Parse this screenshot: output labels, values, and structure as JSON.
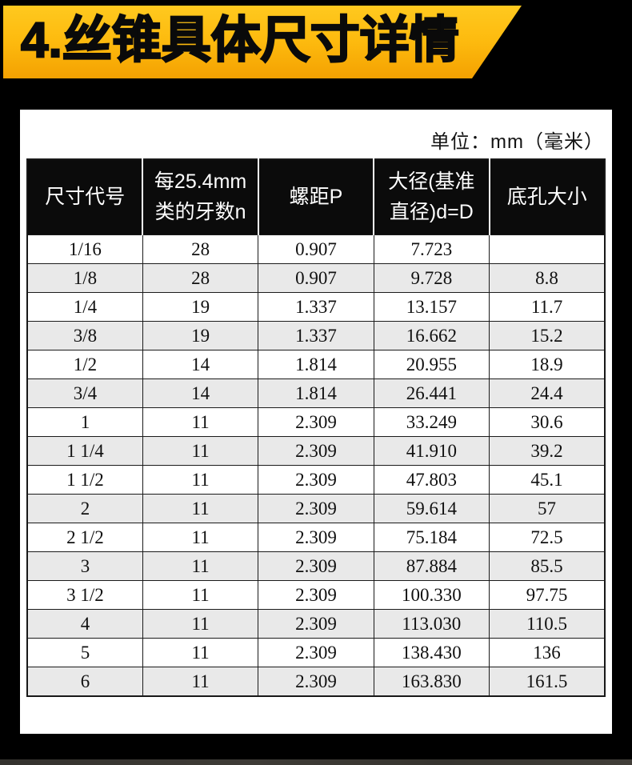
{
  "page": {
    "title": "4.丝锥具体尺寸详情",
    "unit_note": "单位：mm（毫米）"
  },
  "colors": {
    "background": "#000000",
    "banner_gradient_top": "#ffc91f",
    "banner_gradient_bottom": "#f4a101",
    "panel": "#ffffff",
    "header_bg": "#0b0b0b",
    "header_text": "#ffffff",
    "row_alt": "#e9e9e9",
    "body_text": "#101010"
  },
  "table": {
    "headers": [
      "尺寸代号",
      "每25.4mm\n类的牙数n",
      "螺距P",
      "大径(基准\n直径)d=D",
      "底孔大小"
    ],
    "rows": [
      [
        "1/16",
        "28",
        "0.907",
        "7.723",
        ""
      ],
      [
        "1/8",
        "28",
        "0.907",
        "9.728",
        "8.8"
      ],
      [
        "1/4",
        "19",
        "1.337",
        "13.157",
        "11.7"
      ],
      [
        "3/8",
        "19",
        "1.337",
        "16.662",
        "15.2"
      ],
      [
        "1/2",
        "14",
        "1.814",
        "20.955",
        "18.9"
      ],
      [
        "3/4",
        "14",
        "1.814",
        "26.441",
        "24.4"
      ],
      [
        "1",
        "11",
        "2.309",
        "33.249",
        "30.6"
      ],
      [
        "1 1/4",
        "11",
        "2.309",
        "41.910",
        "39.2"
      ],
      [
        "1 1/2",
        "11",
        "2.309",
        "47.803",
        "45.1"
      ],
      [
        "2",
        "11",
        "2.309",
        "59.614",
        "57"
      ],
      [
        "2 1/2",
        "11",
        "2.309",
        "75.184",
        "72.5"
      ],
      [
        "3",
        "11",
        "2.309",
        "87.884",
        "85.5"
      ],
      [
        "3 1/2",
        "11",
        "2.309",
        "100.330",
        "97.75"
      ],
      [
        "4",
        "11",
        "2.309",
        "113.030",
        "110.5"
      ],
      [
        "5",
        "11",
        "2.309",
        "138.430",
        "136"
      ],
      [
        "6",
        "11",
        "2.309",
        "163.830",
        "161.5"
      ]
    ]
  }
}
